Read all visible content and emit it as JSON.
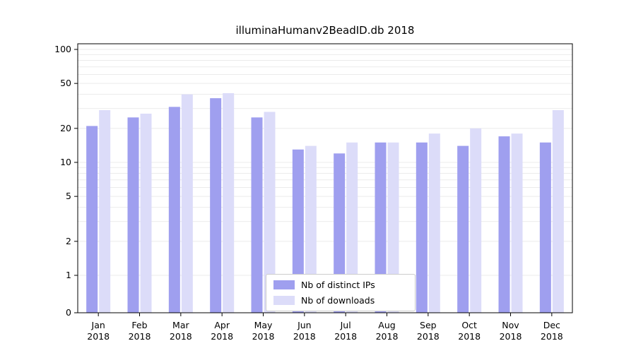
{
  "chart_data": {
    "type": "bar",
    "title": "illuminaHumanv2BeadID.db 2018",
    "categories": [
      "Jan",
      "Feb",
      "Mar",
      "Apr",
      "May",
      "Jun",
      "Jul",
      "Aug",
      "Sep",
      "Oct",
      "Nov",
      "Dec"
    ],
    "x_year": "2018",
    "series": [
      {
        "name": "Nb of distinct IPs",
        "color": "#9f9fef",
        "values": [
          21,
          25,
          31,
          37,
          25,
          13,
          12,
          15,
          15,
          14,
          17,
          15
        ]
      },
      {
        "name": "Nb of downloads",
        "color": "#dcdcf9",
        "values": [
          29,
          27,
          40,
          41,
          28,
          14,
          15,
          15,
          18,
          20,
          18,
          29
        ]
      }
    ],
    "yscale": "log",
    "yticks": [
      100,
      50,
      20,
      10,
      5,
      2,
      1,
      0
    ],
    "ylim": [
      0,
      100
    ],
    "grid": "on",
    "gridlines": [
      1,
      2,
      3,
      4,
      5,
      6,
      7,
      8,
      9,
      10,
      20,
      30,
      40,
      50,
      60,
      70,
      80,
      90,
      100
    ],
    "legend_position": "bottom-center",
    "colors": {
      "grid": "#ebebeb",
      "axis": "#000000",
      "background": "#ffffff"
    }
  }
}
